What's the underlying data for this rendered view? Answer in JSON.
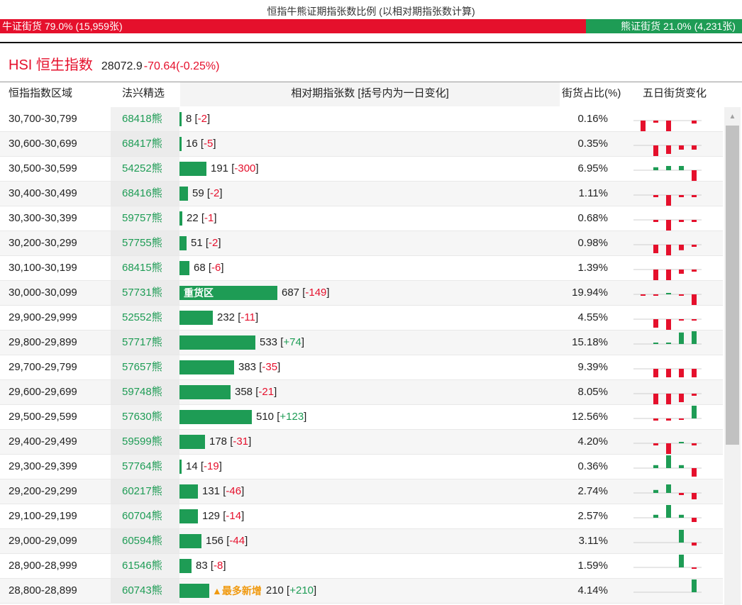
{
  "header": {
    "title": "恒指牛熊证期指张数比例 (以相对期指张数计算)",
    "bull_label": "牛证街货 79.0% (15,959张)",
    "bear_label": "熊证街货 21.0% (4,231张)",
    "bull_ratio": 0.79
  },
  "index": {
    "name": "HSI 恒生指数",
    "price": "28072.9",
    "change": "-70.64(-0.25%)"
  },
  "columns": {
    "range": "恒指指数区域",
    "code": "法兴精选",
    "count": "相对期指张数 [括号内为一日变化]",
    "pct": "街货占比(%)",
    "trend": "五日街货变化"
  },
  "colors": {
    "bull": "#e5102c",
    "bear": "#1e9c55",
    "tag": "#f09a10"
  },
  "max_count": 687,
  "rows": [
    {
      "range": "30,700-30,799",
      "code": "68418熊",
      "count": 8,
      "count_text": "8",
      "change": "-2",
      "pct": "0.16%",
      "trend": [
        -3,
        -0.5,
        -3,
        0,
        -0.7
      ]
    },
    {
      "range": "30,600-30,699",
      "code": "68417熊",
      "count": 16,
      "count_text": "16",
      "change": "-5",
      "pct": "0.35%",
      "trend": [
        0,
        -3,
        -2,
        -1,
        -1
      ]
    },
    {
      "range": "30,500-30,599",
      "code": "54252熊",
      "count": 191,
      "count_text": "191",
      "change": "-300",
      "pct": "6.95%",
      "trend": [
        0,
        0.7,
        1,
        1,
        -3
      ]
    },
    {
      "range": "30,400-30,499",
      "code": "68416熊",
      "count": 59,
      "count_text": "59",
      "change": "-2",
      "pct": "1.11%",
      "trend": [
        0,
        -0.5,
        -3,
        -0.5,
        -0.5
      ]
    },
    {
      "range": "30,300-30,399",
      "code": "59757熊",
      "count": 22,
      "count_text": "22",
      "change": "-1",
      "pct": "0.68%",
      "trend": [
        0,
        -0.5,
        -3,
        -0.5,
        -0.5
      ]
    },
    {
      "range": "30,200-30,299",
      "code": "57755熊",
      "count": 51,
      "count_text": "51",
      "change": "-2",
      "pct": "0.98%",
      "trend": [
        0,
        -2,
        -3,
        -1.3,
        -0.5
      ]
    },
    {
      "range": "30,100-30,199",
      "code": "68415熊",
      "count": 68,
      "count_text": "68",
      "change": "-6",
      "pct": "1.39%",
      "trend": [
        0,
        -3,
        -3,
        -1,
        -0.5
      ]
    },
    {
      "range": "30,000-30,099",
      "code": "57731熊",
      "count": 687,
      "count_text": "687",
      "change": "-149",
      "pct": "19.94%",
      "tag": "重货区",
      "trend": [
        -0.3,
        -0.3,
        0.3,
        -0.3,
        -3
      ]
    },
    {
      "range": "29,900-29,999",
      "code": "52552熊",
      "count": 232,
      "count_text": "232",
      "change": "-11",
      "pct": "4.55%",
      "trend": [
        0,
        -2,
        -3,
        -0.3,
        -0.3
      ]
    },
    {
      "range": "29,800-29,899",
      "code": "57717熊",
      "count": 533,
      "count_text": "533",
      "change": "+74",
      "pct": "15.18%",
      "trend": [
        0,
        0.3,
        0.3,
        2.7,
        3
      ]
    },
    {
      "range": "29,700-29,799",
      "code": "57657熊",
      "count": 383,
      "count_text": "383",
      "change": "-35",
      "pct": "9.39%",
      "trend": [
        0,
        -2,
        -2,
        -2,
        -2
      ]
    },
    {
      "range": "29,600-29,699",
      "code": "59748熊",
      "count": 358,
      "count_text": "358",
      "change": "-21",
      "pct": "8.05%",
      "trend": [
        0,
        -3,
        -3,
        -2,
        -0.5
      ]
    },
    {
      "range": "29,500-29,599",
      "code": "57630熊",
      "count": 510,
      "count_text": "510",
      "change": "+123",
      "pct": "12.56%",
      "trend": [
        0,
        -0.5,
        -0.5,
        -0.3,
        3
      ]
    },
    {
      "range": "29,400-29,499",
      "code": "59599熊",
      "count": 178,
      "count_text": "178",
      "change": "-31",
      "pct": "4.20%",
      "trend": [
        0,
        -0.5,
        -3,
        0.3,
        -0.5
      ]
    },
    {
      "range": "29,300-29,399",
      "code": "57764熊",
      "count": 14,
      "count_text": "14",
      "change": "-19",
      "pct": "0.36%",
      "trend": [
        0,
        0.7,
        3,
        0.7,
        -2
      ]
    },
    {
      "range": "29,200-29,299",
      "code": "60217熊",
      "count": 131,
      "count_text": "131",
      "change": "-46",
      "pct": "2.74%",
      "trend": [
        0,
        0.7,
        2,
        -0.5,
        -1.5
      ]
    },
    {
      "range": "29,100-29,199",
      "code": "60704熊",
      "count": 129,
      "count_text": "129",
      "change": "-14",
      "pct": "2.57%",
      "trend": [
        0,
        0.7,
        3,
        0.7,
        -1
      ]
    },
    {
      "range": "29,000-29,099",
      "code": "60594熊",
      "count": 156,
      "count_text": "156",
      "change": "-44",
      "pct": "3.11%",
      "trend": [
        0,
        0,
        0,
        3,
        -0.7
      ]
    },
    {
      "range": "28,900-28,999",
      "code": "61546熊",
      "count": 83,
      "count_text": "83",
      "change": "-8",
      "pct": "1.59%",
      "trend": [
        0,
        0,
        0,
        3,
        -0.3
      ]
    },
    {
      "range": "28,800-28,899",
      "code": "60743熊",
      "count": 210,
      "count_text": "210",
      "change": "+210",
      "pct": "4.14%",
      "new_tag": "▲最多新增",
      "trend": [
        0,
        0,
        0,
        0,
        3
      ]
    }
  ]
}
